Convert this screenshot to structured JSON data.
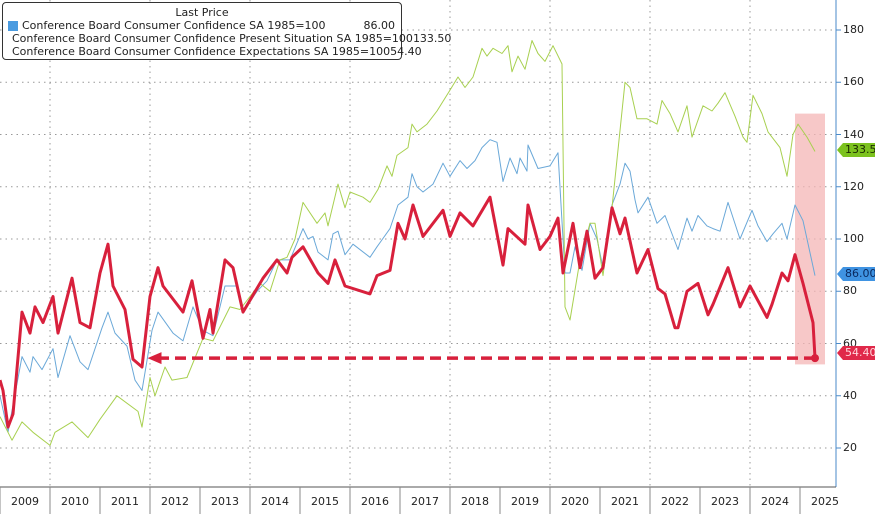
{
  "legend": {
    "header": "Last Price",
    "items": [
      {
        "name": "Conference Board Consumer Confidence SA 1985=100",
        "value": "86.00",
        "color": "#4a9be0"
      },
      {
        "name": "Conference Board Consumer Confidence Present Situation SA 1985=100",
        "value": "133.50",
        "color": "#86c424"
      },
      {
        "name": "Conference Board Consumer Confidence Expectations SA 1985=100",
        "value": "54.40",
        "color": "#d8203c"
      }
    ]
  },
  "chart_data": {
    "type": "line",
    "title": "",
    "xlabel": "",
    "ylabel": "",
    "xlim": [
      2009,
      2025.75
    ],
    "ylim": [
      10,
      190
    ],
    "y_ticks": [
      "20",
      "40",
      "60",
      "80",
      "100",
      "120",
      "140",
      "160",
      "180"
    ],
    "x_tick_labels": [
      "2009",
      "2010",
      "2011",
      "2012",
      "2013",
      "2014",
      "2015",
      "2016",
      "2017",
      "2018",
      "2019",
      "2020",
      "2021",
      "2022",
      "2023",
      "2024",
      "2025"
    ],
    "y_axis_side": "right",
    "grid": true,
    "legend_placement": "top-left",
    "highlight_region": {
      "x": [
        2024.9,
        2025.5
      ],
      "y": [
        52,
        148
      ],
      "color": "#f4b6b6"
    },
    "annotation_arrow": {
      "from": [
        2025.3,
        54.4
      ],
      "to": [
        2011.95,
        54.4
      ],
      "color": "#d8203c",
      "style": "dashed"
    },
    "last_value_labels": [
      "133.50",
      "86.00",
      "54.40"
    ],
    "series": [
      {
        "name": "Conference Board Consumer Confidence SA 1985=100",
        "color": "#6aa8d8",
        "last": "86.00",
        "points": [
          [
            2009.0,
            40
          ],
          [
            2009.16,
            26
          ],
          [
            2009.44,
            55
          ],
          [
            2009.6,
            49
          ],
          [
            2009.66,
            55
          ],
          [
            2009.84,
            50
          ],
          [
            2010.06,
            58
          ],
          [
            2010.16,
            47
          ],
          [
            2010.4,
            63
          ],
          [
            2010.6,
            53
          ],
          [
            2010.76,
            50
          ],
          [
            2011.04,
            66
          ],
          [
            2011.16,
            72
          ],
          [
            2011.3,
            64
          ],
          [
            2011.54,
            59
          ],
          [
            2011.7,
            46
          ],
          [
            2011.84,
            42
          ],
          [
            2012.04,
            65
          ],
          [
            2012.16,
            72
          ],
          [
            2012.46,
            64
          ],
          [
            2012.66,
            61
          ],
          [
            2012.86,
            74
          ],
          [
            2013.06,
            65
          ],
          [
            2013.26,
            63
          ],
          [
            2013.5,
            82
          ],
          [
            2013.74,
            82
          ],
          [
            2013.86,
            72
          ],
          [
            2014.14,
            80
          ],
          [
            2014.34,
            84
          ],
          [
            2014.54,
            92
          ],
          [
            2014.8,
            92
          ],
          [
            2015.06,
            104
          ],
          [
            2015.16,
            100
          ],
          [
            2015.26,
            101
          ],
          [
            2015.36,
            95
          ],
          [
            2015.56,
            92
          ],
          [
            2015.66,
            102
          ],
          [
            2015.76,
            103
          ],
          [
            2015.9,
            94
          ],
          [
            2016.06,
            98
          ],
          [
            2016.4,
            93
          ],
          [
            2016.54,
            97
          ],
          [
            2016.8,
            104
          ],
          [
            2016.96,
            113
          ],
          [
            2017.16,
            116
          ],
          [
            2017.24,
            125
          ],
          [
            2017.34,
            120
          ],
          [
            2017.46,
            118
          ],
          [
            2017.66,
            121
          ],
          [
            2017.86,
            129
          ],
          [
            2018.0,
            124
          ],
          [
            2018.2,
            130
          ],
          [
            2018.34,
            127
          ],
          [
            2018.5,
            130
          ],
          [
            2018.64,
            135
          ],
          [
            2018.8,
            138
          ],
          [
            2018.94,
            137
          ],
          [
            2019.06,
            122
          ],
          [
            2019.2,
            131
          ],
          [
            2019.34,
            125
          ],
          [
            2019.4,
            131
          ],
          [
            2019.54,
            126
          ],
          [
            2019.56,
            136
          ],
          [
            2019.76,
            127
          ],
          [
            2020.0,
            128
          ],
          [
            2020.16,
            133
          ],
          [
            2020.3,
            87
          ],
          [
            2020.4,
            87
          ],
          [
            2020.5,
            97
          ],
          [
            2020.64,
            88
          ],
          [
            2020.8,
            106
          ],
          [
            2020.94,
            100
          ],
          [
            2021.06,
            89
          ],
          [
            2021.24,
            113
          ],
          [
            2021.4,
            121
          ],
          [
            2021.5,
            129
          ],
          [
            2021.6,
            126
          ],
          [
            2021.7,
            115
          ],
          [
            2021.76,
            110
          ],
          [
            2021.96,
            116
          ],
          [
            2022.14,
            106
          ],
          [
            2022.3,
            109
          ],
          [
            2022.56,
            96
          ],
          [
            2022.74,
            108
          ],
          [
            2022.84,
            103
          ],
          [
            2022.96,
            109
          ],
          [
            2023.14,
            105
          ],
          [
            2023.26,
            104
          ],
          [
            2023.4,
            103
          ],
          [
            2023.56,
            114
          ],
          [
            2023.8,
            100
          ],
          [
            2024.04,
            111
          ],
          [
            2024.16,
            105
          ],
          [
            2024.34,
            99
          ],
          [
            2024.46,
            102
          ],
          [
            2024.64,
            106
          ],
          [
            2024.74,
            100
          ],
          [
            2024.9,
            113
          ],
          [
            2025.06,
            107
          ],
          [
            2025.3,
            86
          ]
        ]
      },
      {
        "name": "Conference Board Consumer Confidence Present Situation SA 1985=100",
        "color": "#a8d050",
        "last": "133.50",
        "points": [
          [
            2009.0,
            32
          ],
          [
            2009.24,
            23
          ],
          [
            2009.44,
            30
          ],
          [
            2009.66,
            26
          ],
          [
            2010.0,
            21
          ],
          [
            2010.1,
            26
          ],
          [
            2010.44,
            30
          ],
          [
            2010.76,
            24
          ],
          [
            2011.0,
            31
          ],
          [
            2011.34,
            40
          ],
          [
            2011.76,
            34
          ],
          [
            2011.84,
            28
          ],
          [
            2012.0,
            47
          ],
          [
            2012.1,
            40
          ],
          [
            2012.3,
            51
          ],
          [
            2012.44,
            46
          ],
          [
            2012.74,
            47
          ],
          [
            2013.06,
            62
          ],
          [
            2013.26,
            61
          ],
          [
            2013.6,
            74
          ],
          [
            2013.8,
            73
          ],
          [
            2014.2,
            83
          ],
          [
            2014.4,
            80
          ],
          [
            2014.6,
            92
          ],
          [
            2014.74,
            93
          ],
          [
            2014.9,
            100
          ],
          [
            2015.06,
            114
          ],
          [
            2015.34,
            106
          ],
          [
            2015.5,
            110
          ],
          [
            2015.56,
            105
          ],
          [
            2015.76,
            121
          ],
          [
            2015.9,
            112
          ],
          [
            2016.0,
            118
          ],
          [
            2016.26,
            116
          ],
          [
            2016.4,
            114
          ],
          [
            2016.56,
            119
          ],
          [
            2016.74,
            128
          ],
          [
            2016.84,
            124
          ],
          [
            2016.94,
            132
          ],
          [
            2017.16,
            135
          ],
          [
            2017.24,
            144
          ],
          [
            2017.34,
            141
          ],
          [
            2017.54,
            144
          ],
          [
            2017.74,
            149
          ],
          [
            2018.0,
            157
          ],
          [
            2018.16,
            162
          ],
          [
            2018.3,
            158
          ],
          [
            2018.46,
            162
          ],
          [
            2018.64,
            173
          ],
          [
            2018.74,
            170
          ],
          [
            2018.86,
            173
          ],
          [
            2019.04,
            171
          ],
          [
            2019.16,
            174
          ],
          [
            2019.24,
            164
          ],
          [
            2019.36,
            170
          ],
          [
            2019.5,
            165
          ],
          [
            2019.64,
            176
          ],
          [
            2019.76,
            171
          ],
          [
            2019.9,
            168
          ],
          [
            2020.06,
            174
          ],
          [
            2020.24,
            167
          ],
          [
            2020.3,
            74
          ],
          [
            2020.4,
            69
          ],
          [
            2020.6,
            92
          ],
          [
            2020.8,
            106
          ],
          [
            2020.9,
            106
          ],
          [
            2021.06,
            86
          ],
          [
            2021.24,
            112
          ],
          [
            2021.5,
            160
          ],
          [
            2021.6,
            158
          ],
          [
            2021.74,
            146
          ],
          [
            2021.94,
            146
          ],
          [
            2022.14,
            144
          ],
          [
            2022.24,
            153
          ],
          [
            2022.4,
            148
          ],
          [
            2022.56,
            141
          ],
          [
            2022.74,
            151
          ],
          [
            2022.84,
            139
          ],
          [
            2023.06,
            151
          ],
          [
            2023.24,
            149
          ],
          [
            2023.36,
            152
          ],
          [
            2023.5,
            156
          ],
          [
            2023.7,
            147
          ],
          [
            2023.86,
            139
          ],
          [
            2023.94,
            137
          ],
          [
            2024.06,
            155
          ],
          [
            2024.24,
            148
          ],
          [
            2024.36,
            141
          ],
          [
            2024.6,
            135
          ],
          [
            2024.74,
            124
          ],
          [
            2024.86,
            140
          ],
          [
            2024.96,
            144
          ],
          [
            2025.14,
            139
          ],
          [
            2025.3,
            133.5
          ]
        ]
      },
      {
        "name": "Conference Board Consumer Confidence Expectations SA 1985=100",
        "color": "#d8203c",
        "last": "54.40",
        "points": [
          [
            2009.0,
            46
          ],
          [
            2009.06,
            42
          ],
          [
            2009.16,
            28
          ],
          [
            2009.26,
            33
          ],
          [
            2009.44,
            72
          ],
          [
            2009.6,
            64
          ],
          [
            2009.7,
            74
          ],
          [
            2009.86,
            68
          ],
          [
            2010.06,
            78
          ],
          [
            2010.16,
            64
          ],
          [
            2010.44,
            85
          ],
          [
            2010.6,
            68
          ],
          [
            2010.8,
            66
          ],
          [
            2011.0,
            87
          ],
          [
            2011.16,
            98
          ],
          [
            2011.26,
            82
          ],
          [
            2011.5,
            73
          ],
          [
            2011.66,
            54
          ],
          [
            2011.84,
            51
          ],
          [
            2012.0,
            78
          ],
          [
            2012.16,
            89
          ],
          [
            2012.26,
            82
          ],
          [
            2012.66,
            72
          ],
          [
            2012.84,
            84
          ],
          [
            2013.06,
            62
          ],
          [
            2013.2,
            73
          ],
          [
            2013.26,
            64
          ],
          [
            2013.5,
            92
          ],
          [
            2013.66,
            89
          ],
          [
            2013.86,
            72
          ],
          [
            2014.26,
            85
          ],
          [
            2014.54,
            92
          ],
          [
            2014.74,
            87
          ],
          [
            2014.84,
            93
          ],
          [
            2015.06,
            97
          ],
          [
            2015.36,
            87
          ],
          [
            2015.56,
            83
          ],
          [
            2015.7,
            92
          ],
          [
            2015.9,
            82
          ],
          [
            2016.4,
            79
          ],
          [
            2016.54,
            86
          ],
          [
            2016.8,
            88
          ],
          [
            2016.96,
            106
          ],
          [
            2017.1,
            100
          ],
          [
            2017.26,
            113
          ],
          [
            2017.46,
            101
          ],
          [
            2017.86,
            111
          ],
          [
            2018.0,
            101
          ],
          [
            2018.2,
            110
          ],
          [
            2018.46,
            105
          ],
          [
            2018.8,
            116
          ],
          [
            2019.06,
            90
          ],
          [
            2019.16,
            104
          ],
          [
            2019.5,
            98
          ],
          [
            2019.56,
            113
          ],
          [
            2019.8,
            96
          ],
          [
            2020.0,
            101
          ],
          [
            2020.16,
            108
          ],
          [
            2020.26,
            87
          ],
          [
            2020.46,
            106
          ],
          [
            2020.6,
            89
          ],
          [
            2020.74,
            103
          ],
          [
            2020.9,
            85
          ],
          [
            2021.06,
            89
          ],
          [
            2021.24,
            112
          ],
          [
            2021.4,
            102
          ],
          [
            2021.5,
            108
          ],
          [
            2021.74,
            87
          ],
          [
            2021.96,
            96
          ],
          [
            2022.16,
            81
          ],
          [
            2022.3,
            79
          ],
          [
            2022.5,
            66
          ],
          [
            2022.56,
            66
          ],
          [
            2022.74,
            80
          ],
          [
            2022.96,
            83
          ],
          [
            2023.16,
            71
          ],
          [
            2023.26,
            75
          ],
          [
            2023.56,
            89
          ],
          [
            2023.8,
            74
          ],
          [
            2024.0,
            82
          ],
          [
            2024.34,
            70
          ],
          [
            2024.44,
            75
          ],
          [
            2024.64,
            87
          ],
          [
            2024.76,
            84
          ],
          [
            2024.9,
            94
          ],
          [
            2025.06,
            83
          ],
          [
            2025.26,
            68
          ],
          [
            2025.3,
            54.4
          ]
        ]
      }
    ]
  }
}
